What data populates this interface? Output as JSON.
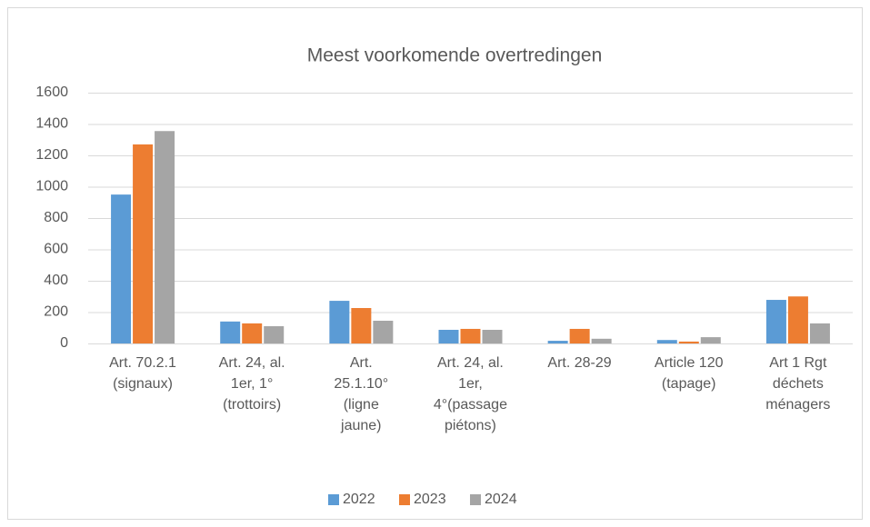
{
  "chart_data": {
    "type": "bar",
    "title": "Meest voorkomende overtredingen",
    "categories": [
      "Art. 70.2.1\n(signaux)",
      "Art. 24, al.\n1er, 1°\n(trottoirs)",
      "Art.\n25.1.10°\n(ligne\njaune)",
      "Art. 24, al.\n1er,\n4°(passage\npiétons)",
      "Art. 28-29",
      "Article 120\n(tapage)",
      "Art 1 Rgt\ndéchets\nménagers"
    ],
    "series": [
      {
        "name": "2022",
        "color": "#5b9bd5",
        "values": [
          950,
          140,
          272,
          87,
          17,
          22,
          278
        ]
      },
      {
        "name": "2023",
        "color": "#ed7d31",
        "values": [
          1270,
          128,
          226,
          93,
          93,
          12,
          300
        ]
      },
      {
        "name": "2024",
        "color": "#a5a5a5",
        "values": [
          1355,
          110,
          145,
          87,
          30,
          40,
          128
        ]
      }
    ],
    "ylim": [
      0,
      1600
    ],
    "yticks": [
      0,
      200,
      400,
      600,
      800,
      1000,
      1200,
      1400,
      1600
    ],
    "grid": true,
    "legend": "bottom"
  }
}
